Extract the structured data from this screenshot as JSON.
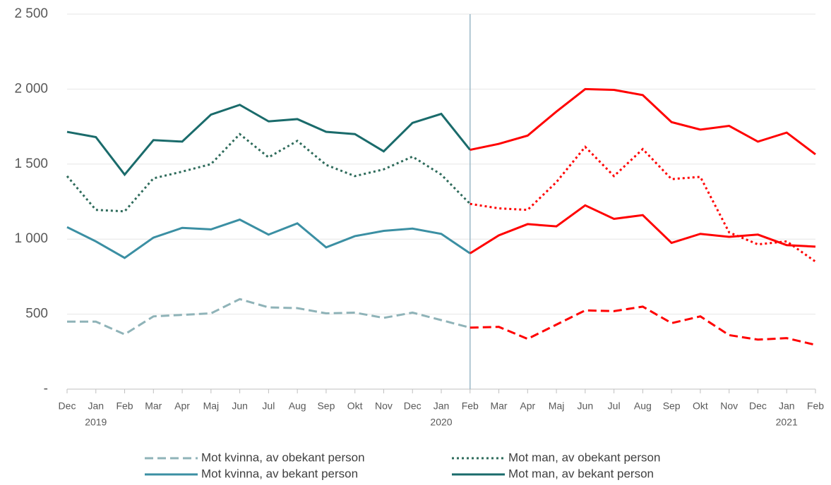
{
  "chart_data": {
    "type": "line",
    "categories": [
      "Dec",
      "Jan",
      "Feb",
      "Mar",
      "Apr",
      "Maj",
      "Jun",
      "Jul",
      "Aug",
      "Sep",
      "Okt",
      "Nov",
      "Dec",
      "Jan",
      "Feb",
      "Mar",
      "Apr",
      "Maj",
      "Jun",
      "Jul",
      "Aug",
      "Sep",
      "Okt",
      "Nov",
      "Dec",
      "Jan",
      "Feb"
    ],
    "year_row": [
      null,
      "2019",
      null,
      null,
      null,
      null,
      null,
      null,
      null,
      null,
      null,
      null,
      null,
      "2020",
      null,
      null,
      null,
      null,
      null,
      null,
      null,
      null,
      null,
      null,
      null,
      "2021",
      null
    ],
    "ylim": [
      0,
      2500
    ],
    "yticks": [
      {
        "value": 0,
        "label": "-"
      },
      500,
      {
        "value": 1000,
        "label": "1 000"
      },
      {
        "value": 1500,
        "label": "1 500"
      },
      {
        "value": 2000,
        "label": "2 000"
      },
      {
        "value": 2500,
        "label": "2 500"
      }
    ],
    "grid": true,
    "highlight_color": "#ff0000",
    "highlight_from_index": 14,
    "series": [
      {
        "name": "Mot kvinna, av obekant person",
        "color": "#8fb3b8",
        "dash": "dashed",
        "values": [
          450,
          450,
          365,
          485,
          495,
          505,
          600,
          545,
          540,
          505,
          510,
          475,
          510,
          460,
          410,
          415,
          335,
          430,
          525,
          520,
          550,
          440,
          485,
          360,
          330,
          340,
          295
        ]
      },
      {
        "name": "Mot man, av obekant person",
        "color": "#2e6b5b",
        "dash": "dotted",
        "values": [
          1420,
          1195,
          1185,
          1405,
          1450,
          1500,
          1700,
          1545,
          1655,
          1495,
          1420,
          1465,
          1550,
          1430,
          1235,
          1205,
          1195,
          1380,
          1615,
          1420,
          1600,
          1400,
          1415,
          1045,
          965,
          985,
          850
        ]
      },
      {
        "name": "Mot kvinna, av bekant person",
        "color": "#3b8fa3",
        "dash": "solid",
        "values": [
          1080,
          985,
          875,
          1010,
          1075,
          1065,
          1130,
          1030,
          1105,
          945,
          1020,
          1055,
          1070,
          1035,
          905,
          1025,
          1100,
          1085,
          1225,
          1135,
          1160,
          975,
          1035,
          1015,
          1030,
          960,
          950
        ]
      },
      {
        "name": "Mot man, av bekant person",
        "color": "#1a6b6b",
        "dash": "solid",
        "values": [
          1715,
          1680,
          1430,
          1660,
          1650,
          1830,
          1895,
          1785,
          1800,
          1715,
          1700,
          1585,
          1775,
          1835,
          1595,
          1635,
          1690,
          1850,
          2000,
          1995,
          1960,
          1780,
          1730,
          1755,
          1650,
          1710,
          1565
        ]
      }
    ]
  }
}
